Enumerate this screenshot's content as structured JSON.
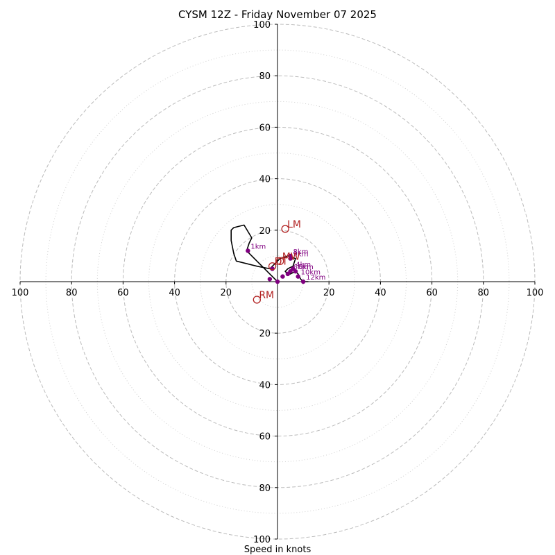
{
  "chart_data": {
    "type": "scatter",
    "subtype": "hodograph",
    "title": "CYSM 12Z - Friday November 07 2025",
    "xlabel": "Speed in knots",
    "range": 100,
    "ring_major": [
      20,
      40,
      60,
      80,
      100
    ],
    "ring_minor": [
      10,
      30,
      50,
      70,
      90
    ],
    "x_ticks": [
      {
        "label": "100",
        "v": -100
      },
      {
        "label": "80",
        "v": -80
      },
      {
        "label": "60",
        "v": -60
      },
      {
        "label": "40",
        "v": -40
      },
      {
        "label": "20",
        "v": -20
      },
      {
        "label": "20",
        "v": 20
      },
      {
        "label": "40",
        "v": 40
      },
      {
        "label": "60",
        "v": 60
      },
      {
        "label": "80",
        "v": 80
      },
      {
        "label": "100",
        "v": 100
      }
    ],
    "y_ticks": [
      {
        "label": "100",
        "v": 100
      },
      {
        "label": "80",
        "v": 80
      },
      {
        "label": "60",
        "v": 60
      },
      {
        "label": "40",
        "v": 40
      },
      {
        "label": "20",
        "v": 20
      },
      {
        "label": "20",
        "v": -20
      },
      {
        "label": "40",
        "v": -40
      },
      {
        "label": "60",
        "v": -60
      },
      {
        "label": "80",
        "v": -80
      },
      {
        "label": "100",
        "v": -100
      }
    ],
    "trace": [
      [
        0,
        0
      ],
      [
        -2,
        2
      ],
      [
        -3,
        3
      ],
      [
        -4,
        4
      ],
      [
        -8,
        8
      ],
      [
        -11,
        11
      ],
      [
        -12,
        12
      ],
      [
        -11,
        15
      ],
      [
        -10,
        17
      ],
      [
        -13,
        22
      ],
      [
        -17,
        21
      ],
      [
        -18,
        20
      ],
      [
        -18,
        16
      ],
      [
        -17,
        11
      ],
      [
        -16,
        8
      ],
      [
        -8,
        6
      ],
      [
        -3,
        5
      ],
      [
        1,
        9
      ],
      [
        4,
        10
      ],
      [
        7,
        9
      ],
      [
        6,
        6
      ],
      [
        4,
        5
      ],
      [
        3,
        4
      ],
      [
        4,
        3
      ],
      [
        5,
        3
      ],
      [
        7,
        4
      ],
      [
        8,
        3
      ],
      [
        9,
        1
      ],
      [
        10,
        0
      ],
      [
        12,
        0
      ]
    ],
    "points": [
      {
        "label": "1km",
        "u": -11.5,
        "v": 12
      },
      {
        "label": "8km",
        "v": 10,
        "u": 5
      },
      {
        "label": "9km",
        "u": 5,
        "v": 9
      },
      {
        "label": "4km",
        "u": 6,
        "v": 5
      },
      {
        "label": "6km",
        "u": 5,
        "v": 4
      },
      {
        "label": "5km",
        "u": 7,
        "v": 4
      },
      {
        "label": "10km",
        "u": 8,
        "v": 2
      },
      {
        "label": "12km",
        "u": 10,
        "v": 0
      },
      {
        "label": "",
        "u": 4,
        "v": 3
      },
      {
        "label": "",
        "u": 2,
        "v": 2
      },
      {
        "label": "",
        "u": -3,
        "v": 1
      },
      {
        "label": "",
        "u": 0,
        "v": 0
      },
      {
        "label": "",
        "u": -2,
        "v": 5
      }
    ],
    "markers": [
      {
        "label": "LM",
        "u": 3,
        "v": 20.5
      },
      {
        "label": "RM",
        "u": -8,
        "v": -7
      },
      {
        "label": "MW",
        "u": 1,
        "v": 8
      },
      {
        "label": "DT",
        "u": -2,
        "v": 6
      }
    ]
  },
  "colors": {
    "trace": "#000000",
    "points": "#800080",
    "markers": "#b22222",
    "rings": "#bbbbbb",
    "axes": "#000000"
  }
}
